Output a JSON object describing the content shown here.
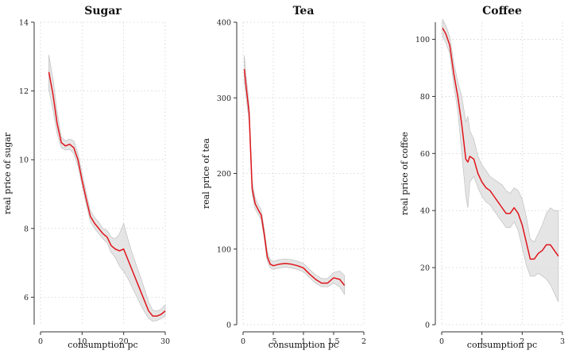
{
  "chart_data": [
    {
      "type": "line",
      "title": "Sugar",
      "xlabel": "consumption pc",
      "ylabel": "real price of sugar",
      "xlim": [
        0,
        30
      ],
      "ylim": [
        5.2,
        14
      ],
      "x_ticks": [
        0,
        10,
        20,
        30
      ],
      "x_tick_labels": [
        "0",
        "10",
        "20",
        "30"
      ],
      "y_ticks": [
        6,
        8,
        10,
        12,
        14
      ],
      "y_tick_labels": [
        "6",
        "8",
        "10",
        "12",
        "14"
      ],
      "grid": true,
      "line_color": "#e0141a",
      "band_color": "#dcdcdc",
      "x": [
        2,
        3,
        4,
        5,
        6,
        7,
        8,
        9,
        10,
        11,
        12,
        13,
        14,
        15,
        16,
        17,
        18,
        19,
        20,
        21,
        22,
        23,
        24,
        25,
        26,
        27,
        28,
        29,
        30
      ],
      "y": [
        12.55,
        11.9,
        11.05,
        10.5,
        10.4,
        10.45,
        10.35,
        10.0,
        9.4,
        8.85,
        8.35,
        8.15,
        8.0,
        7.85,
        7.75,
        7.5,
        7.4,
        7.35,
        7.4,
        7.1,
        6.8,
        6.5,
        6.2,
        5.9,
        5.6,
        5.45,
        5.45,
        5.5,
        5.6
      ],
      "lower": [
        12.05,
        11.45,
        10.75,
        10.35,
        10.28,
        10.3,
        10.18,
        9.82,
        9.25,
        8.7,
        8.2,
        8.0,
        7.85,
        7.7,
        7.58,
        7.3,
        7.15,
        6.9,
        6.75,
        6.55,
        6.3,
        6.05,
        5.8,
        5.58,
        5.38,
        5.3,
        5.32,
        5.38,
        5.45
      ],
      "upper": [
        13.05,
        12.35,
        11.4,
        10.65,
        10.55,
        10.6,
        10.55,
        10.2,
        9.6,
        9.05,
        8.52,
        8.32,
        8.18,
        8.0,
        7.95,
        7.75,
        7.7,
        7.85,
        8.15,
        7.7,
        7.3,
        6.95,
        6.6,
        6.25,
        5.85,
        5.62,
        5.6,
        5.65,
        5.78
      ]
    },
    {
      "type": "line",
      "title": "Tea",
      "xlabel": "consumption pc",
      "ylabel": "real price of tea",
      "xlim": [
        0,
        2
      ],
      "ylim": [
        0,
        400
      ],
      "x_ticks": [
        0,
        0.5,
        1,
        1.5,
        2
      ],
      "x_tick_labels": [
        "0",
        ".5",
        "1",
        "1.5",
        "2"
      ],
      "y_ticks": [
        0,
        100,
        200,
        300,
        400
      ],
      "y_tick_labels": [
        "0",
        "100",
        "200",
        "300",
        "400"
      ],
      "grid": true,
      "line_color": "#e0141a",
      "band_color": "#dcdcdc",
      "x": [
        0.02,
        0.05,
        0.1,
        0.15,
        0.2,
        0.25,
        0.3,
        0.35,
        0.4,
        0.45,
        0.5,
        0.6,
        0.7,
        0.8,
        0.9,
        1.0,
        1.1,
        1.2,
        1.3,
        1.4,
        1.5,
        1.6,
        1.68
      ],
      "y": [
        338,
        315,
        280,
        180,
        160,
        152,
        145,
        120,
        90,
        80,
        78,
        80,
        81,
        80,
        78,
        75,
        67,
        60,
        55,
        55,
        62,
        60,
        52
      ],
      "lower": [
        320,
        300,
        268,
        172,
        153,
        146,
        139,
        114,
        84,
        75,
        73,
        75,
        76,
        75,
        73,
        70,
        62,
        55,
        50,
        50,
        55,
        50,
        40
      ],
      "upper": [
        356,
        330,
        292,
        190,
        168,
        159,
        152,
        127,
        97,
        86,
        84,
        86,
        87,
        86,
        84,
        81,
        73,
        66,
        61,
        61,
        69,
        71,
        65
      ]
    },
    {
      "type": "line",
      "title": "Coffee",
      "xlabel": "consumption pc",
      "ylabel": "real price of coffee",
      "xlim": [
        0,
        3
      ],
      "ylim": [
        0,
        106
      ],
      "x_ticks": [
        0,
        1,
        2,
        3
      ],
      "x_tick_labels": [
        "0",
        "1",
        "2",
        "3"
      ],
      "y_ticks": [
        0,
        20,
        40,
        60,
        80,
        100
      ],
      "y_tick_labels": [
        "0",
        "20",
        "40",
        "60",
        "80",
        "100"
      ],
      "grid": true,
      "line_color": "#e0141a",
      "band_color": "#dcdcdc",
      "x": [
        0.02,
        0.1,
        0.2,
        0.3,
        0.4,
        0.5,
        0.6,
        0.65,
        0.7,
        0.8,
        0.9,
        1.0,
        1.1,
        1.2,
        1.3,
        1.4,
        1.5,
        1.6,
        1.7,
        1.8,
        1.9,
        2.0,
        2.1,
        2.2,
        2.3,
        2.4,
        2.5,
        2.6,
        2.7,
        2.8,
        2.9
      ],
      "y": [
        104,
        102,
        98,
        88,
        80,
        70,
        58,
        57,
        59,
        58,
        53,
        50,
        48,
        47,
        45,
        43,
        41,
        39,
        39,
        41,
        39,
        35,
        29,
        23,
        23,
        25,
        26,
        28,
        28,
        26,
        24
      ],
      "lower": [
        101,
        99,
        95,
        84,
        75,
        60,
        45,
        41,
        50,
        52,
        48,
        45,
        43,
        42,
        40,
        38,
        36,
        34,
        34,
        36,
        33,
        27,
        21,
        17,
        17,
        18,
        17,
        16,
        14,
        11,
        8
      ],
      "upper": [
        107,
        105,
        101,
        92,
        85,
        80,
        71,
        73,
        68,
        65,
        59,
        56,
        54,
        52,
        51,
        50,
        49,
        47,
        46,
        48,
        47,
        44,
        38,
        30,
        29,
        32,
        35,
        39,
        41,
        40,
        40
      ]
    }
  ]
}
